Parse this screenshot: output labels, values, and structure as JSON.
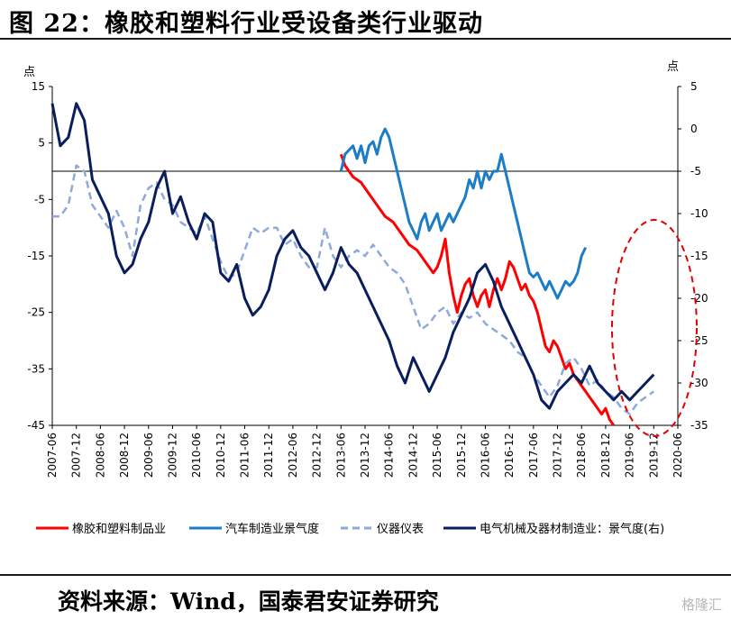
{
  "title": "图 22：橡胶和塑料行业受设备类行业驱动",
  "source": "资料来源：Wind，国泰君安证券研究",
  "watermark": "格隆汇",
  "chart_data": {
    "type": "line",
    "left_unit": "点",
    "right_unit": "点",
    "ylim_left": [
      -45,
      15
    ],
    "ylim_right": [
      -35,
      5
    ],
    "left_ticks": [
      "15",
      "5",
      "-5",
      "-15",
      "-25",
      "-35",
      "-45"
    ],
    "right_ticks": [
      "5",
      "0",
      "-5",
      "-10",
      "-15",
      "-20",
      "-25",
      "-30",
      "-35"
    ],
    "x_ticks": [
      "2007-06",
      "2007-12",
      "2008-06",
      "2008-12",
      "2009-06",
      "2009-12",
      "2010-06",
      "2010-12",
      "2011-06",
      "2011-12",
      "2012-06",
      "2012-12",
      "2013-06",
      "2013-12",
      "2014-06",
      "2014-12",
      "2015-06",
      "2015-12",
      "2016-06",
      "2016-12",
      "2017-06",
      "2017-12",
      "2018-06",
      "2018-12",
      "2019-06",
      "2019-12",
      "2020-06"
    ],
    "series": [
      {
        "name": "橡胶和塑料制品业",
        "axis": "left",
        "color": "#ff0000",
        "style": "solid",
        "points": [
          [
            72,
            3
          ],
          [
            73,
            1
          ],
          [
            75,
            -1
          ],
          [
            77,
            -2
          ],
          [
            79,
            -4
          ],
          [
            81,
            -6
          ],
          [
            83,
            -8
          ],
          [
            85,
            -9
          ],
          [
            87,
            -11
          ],
          [
            89,
            -13
          ],
          [
            91,
            -14
          ],
          [
            93,
            -16
          ],
          [
            95,
            -18
          ],
          [
            96,
            -17
          ],
          [
            97,
            -15
          ],
          [
            98,
            -12
          ],
          [
            99,
            -18
          ],
          [
            100,
            -22
          ],
          [
            101,
            -25
          ],
          [
            102,
            -22
          ],
          [
            103,
            -20
          ],
          [
            104,
            -19
          ],
          [
            105,
            -22
          ],
          [
            106,
            -24
          ],
          [
            107,
            -22
          ],
          [
            108,
            -21
          ],
          [
            109,
            -24
          ],
          [
            110,
            -21
          ],
          [
            111,
            -19
          ],
          [
            112,
            -21
          ],
          [
            113,
            -19
          ],
          [
            114,
            -16
          ],
          [
            115,
            -17
          ],
          [
            116,
            -19
          ],
          [
            117,
            -21
          ],
          [
            118,
            -20
          ],
          [
            119,
            -22
          ],
          [
            120,
            -23
          ],
          [
            121,
            -25
          ],
          [
            122,
            -28
          ],
          [
            123,
            -31
          ],
          [
            124,
            -32
          ],
          [
            125,
            -30
          ],
          [
            126,
            -31
          ],
          [
            127,
            -33
          ],
          [
            128,
            -35
          ],
          [
            129,
            -34
          ],
          [
            130,
            -36
          ],
          [
            131,
            -37
          ],
          [
            132,
            -38
          ],
          [
            133,
            -39
          ],
          [
            134,
            -40
          ],
          [
            135,
            -41
          ],
          [
            136,
            -42
          ],
          [
            137,
            -43
          ],
          [
            138,
            -42
          ],
          [
            139,
            -44
          ],
          [
            140,
            -45
          ]
        ]
      },
      {
        "name": "汽车制造业景气度",
        "axis": "right",
        "color": "#1c7dc7",
        "style": "solid",
        "points": [
          [
            72,
            -5
          ],
          [
            73,
            -3
          ],
          [
            74,
            -2.5
          ],
          [
            75,
            -2
          ],
          [
            76,
            -3.5
          ],
          [
            77,
            -2
          ],
          [
            78,
            -4
          ],
          [
            79,
            -2
          ],
          [
            80,
            -1.5
          ],
          [
            81,
            -3
          ],
          [
            82,
            -1
          ],
          [
            83,
            0
          ],
          [
            84,
            -1
          ],
          [
            85,
            -3
          ],
          [
            86,
            -5
          ],
          [
            87,
            -7
          ],
          [
            88,
            -9
          ],
          [
            89,
            -11
          ],
          [
            90,
            -12
          ],
          [
            91,
            -13
          ],
          [
            92,
            -11
          ],
          [
            93,
            -10
          ],
          [
            94,
            -12
          ],
          [
            95,
            -11
          ],
          [
            96,
            -10
          ],
          [
            97,
            -12
          ],
          [
            98,
            -11
          ],
          [
            99,
            -10
          ],
          [
            100,
            -11
          ],
          [
            101,
            -10
          ],
          [
            102,
            -9
          ],
          [
            103,
            -8
          ],
          [
            104,
            -6
          ],
          [
            105,
            -7
          ],
          [
            106,
            -5
          ],
          [
            107,
            -7
          ],
          [
            108,
            -5
          ],
          [
            109,
            -6
          ],
          [
            110,
            -5
          ],
          [
            111,
            -5
          ],
          [
            112,
            -3
          ],
          [
            113,
            -5
          ],
          [
            114,
            -7
          ],
          [
            115,
            -9
          ],
          [
            116,
            -11
          ],
          [
            117,
            -13
          ],
          [
            118,
            -15
          ],
          [
            119,
            -17
          ],
          [
            120,
            -17.5
          ],
          [
            121,
            -17
          ],
          [
            122,
            -18
          ],
          [
            123,
            -19
          ],
          [
            124,
            -18
          ],
          [
            125,
            -19
          ],
          [
            126,
            -20
          ],
          [
            127,
            -19
          ],
          [
            128,
            -18
          ],
          [
            129,
            -18.5
          ],
          [
            130,
            -18
          ],
          [
            131,
            -17
          ],
          [
            132,
            -15
          ],
          [
            133,
            -14
          ]
        ]
      },
      {
        "name": "仪器仪表",
        "axis": "left",
        "color": "#8ea9db",
        "style": "dashed",
        "points": [
          [
            0,
            -8
          ],
          [
            2,
            -8
          ],
          [
            4,
            -6
          ],
          [
            6,
            1
          ],
          [
            8,
            0
          ],
          [
            10,
            -6
          ],
          [
            12,
            -8
          ],
          [
            14,
            -10
          ],
          [
            16,
            -7
          ],
          [
            18,
            -10
          ],
          [
            20,
            -15
          ],
          [
            22,
            -6
          ],
          [
            24,
            -3
          ],
          [
            26,
            -2
          ],
          [
            28,
            -5
          ],
          [
            30,
            -6
          ],
          [
            32,
            -9
          ],
          [
            34,
            -10
          ],
          [
            36,
            -11
          ],
          [
            38,
            -8
          ],
          [
            40,
            -12
          ],
          [
            42,
            -16
          ],
          [
            44,
            -19
          ],
          [
            46,
            -18
          ],
          [
            48,
            -14
          ],
          [
            50,
            -10
          ],
          [
            52,
            -11
          ],
          [
            54,
            -10
          ],
          [
            56,
            -10
          ],
          [
            58,
            -13
          ],
          [
            60,
            -12
          ],
          [
            62,
            -15
          ],
          [
            64,
            -17
          ],
          [
            66,
            -17
          ],
          [
            68,
            -10
          ],
          [
            70,
            -15
          ],
          [
            72,
            -17
          ],
          [
            74,
            -15
          ],
          [
            76,
            -14
          ],
          [
            78,
            -15
          ],
          [
            80,
            -13
          ],
          [
            82,
            -15
          ],
          [
            84,
            -17
          ],
          [
            86,
            -18
          ],
          [
            88,
            -20
          ],
          [
            90,
            -24
          ],
          [
            92,
            -28
          ],
          [
            94,
            -27
          ],
          [
            96,
            -25
          ],
          [
            98,
            -24
          ],
          [
            100,
            -27
          ],
          [
            102,
            -25
          ],
          [
            104,
            -26
          ],
          [
            106,
            -25
          ],
          [
            108,
            -27
          ],
          [
            110,
            -28
          ],
          [
            112,
            -29
          ],
          [
            114,
            -30
          ],
          [
            116,
            -32
          ],
          [
            118,
            -33
          ],
          [
            120,
            -36
          ],
          [
            122,
            -38
          ],
          [
            124,
            -40
          ],
          [
            126,
            -38
          ],
          [
            128,
            -34
          ],
          [
            130,
            -33
          ],
          [
            132,
            -35
          ],
          [
            134,
            -38
          ],
          [
            136,
            -37
          ],
          [
            138,
            -39
          ],
          [
            140,
            -40
          ],
          [
            142,
            -42
          ],
          [
            144,
            -43
          ],
          [
            146,
            -41
          ],
          [
            148,
            -40
          ],
          [
            150,
            -39
          ]
        ]
      },
      {
        "name": "电气机械及器材制造业：景气度(右)",
        "axis": "right",
        "color": "#0a1e5e",
        "style": "solid",
        "points": [
          [
            0,
            3
          ],
          [
            2,
            -2
          ],
          [
            4,
            -1
          ],
          [
            6,
            3
          ],
          [
            8,
            1
          ],
          [
            10,
            -6
          ],
          [
            12,
            -8
          ],
          [
            14,
            -10
          ],
          [
            16,
            -15
          ],
          [
            18,
            -17
          ],
          [
            20,
            -16
          ],
          [
            22,
            -13
          ],
          [
            24,
            -11
          ],
          [
            26,
            -7
          ],
          [
            28,
            -5
          ],
          [
            30,
            -10
          ],
          [
            32,
            -8
          ],
          [
            34,
            -11
          ],
          [
            36,
            -13
          ],
          [
            38,
            -10
          ],
          [
            40,
            -11
          ],
          [
            42,
            -17
          ],
          [
            44,
            -18
          ],
          [
            46,
            -16
          ],
          [
            48,
            -20
          ],
          [
            50,
            -22
          ],
          [
            52,
            -21
          ],
          [
            54,
            -19
          ],
          [
            56,
            -15
          ],
          [
            58,
            -13
          ],
          [
            60,
            -12
          ],
          [
            62,
            -14
          ],
          [
            64,
            -15
          ],
          [
            66,
            -17
          ],
          [
            68,
            -19
          ],
          [
            70,
            -17
          ],
          [
            72,
            -14
          ],
          [
            74,
            -16
          ],
          [
            76,
            -17
          ],
          [
            78,
            -19
          ],
          [
            80,
            -21
          ],
          [
            82,
            -23
          ],
          [
            84,
            -25
          ],
          [
            86,
            -28
          ],
          [
            88,
            -30
          ],
          [
            90,
            -27
          ],
          [
            92,
            -29
          ],
          [
            94,
            -31
          ],
          [
            96,
            -29
          ],
          [
            98,
            -27
          ],
          [
            100,
            -24
          ],
          [
            102,
            -22
          ],
          [
            104,
            -20
          ],
          [
            106,
            -17
          ],
          [
            108,
            -16
          ],
          [
            110,
            -18
          ],
          [
            112,
            -21
          ],
          [
            114,
            -23
          ],
          [
            116,
            -25
          ],
          [
            118,
            -27
          ],
          [
            120,
            -29
          ],
          [
            122,
            -32
          ],
          [
            124,
            -33
          ],
          [
            126,
            -31
          ],
          [
            128,
            -30
          ],
          [
            130,
            -29
          ],
          [
            132,
            -30
          ],
          [
            134,
            -28
          ],
          [
            136,
            -30
          ],
          [
            138,
            -31
          ],
          [
            140,
            -32
          ],
          [
            142,
            -31
          ],
          [
            144,
            -32
          ],
          [
            146,
            -31
          ],
          [
            148,
            -30
          ],
          [
            150,
            -29
          ]
        ]
      }
    ]
  }
}
